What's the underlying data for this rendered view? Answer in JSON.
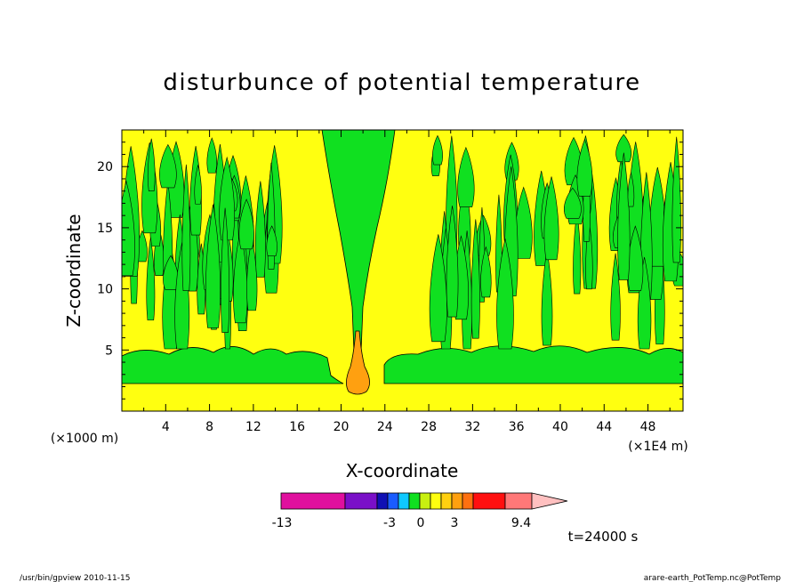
{
  "chart_data": {
    "type": "heatmap",
    "title": "disturbunce of potential temperature",
    "xlabel": "X-coordinate",
    "ylabel": "Z-coordinate",
    "x_unit_left": "(×1000 m)",
    "x_unit_right": "(×1E4 m)",
    "xlim": [
      0,
      51.2
    ],
    "ylim": [
      0,
      23
    ],
    "xticks": [
      "4",
      "8",
      "12",
      "16",
      "20",
      "24",
      "28",
      "32",
      "36",
      "40",
      "44",
      "48"
    ],
    "yticks": [
      "5",
      "10",
      "15",
      "20"
    ],
    "time_label": "t=24000 s",
    "colorbar": {
      "tick_labels": [
        "-13",
        "-3",
        "0",
        "3",
        "9.4"
      ],
      "colors": [
        "#e0109e",
        "#7a10c8",
        "#1010b4",
        "#1a5cff",
        "#10c8ff",
        "#10e020",
        "#c8f010",
        "#ffff10",
        "#ffd010",
        "#ffa010",
        "#ff7010",
        "#ff1010",
        "#ff7878",
        "#ffc0c0"
      ]
    },
    "colors": {
      "background_field": "#ffff10",
      "positive_band": "#10e020",
      "plume_core": "#ffa010"
    }
  },
  "footer": {
    "left": "/usr/bin/gpview   2010-11-15",
    "right": "arare-earth_PotTemp.nc@PotTemp"
  }
}
